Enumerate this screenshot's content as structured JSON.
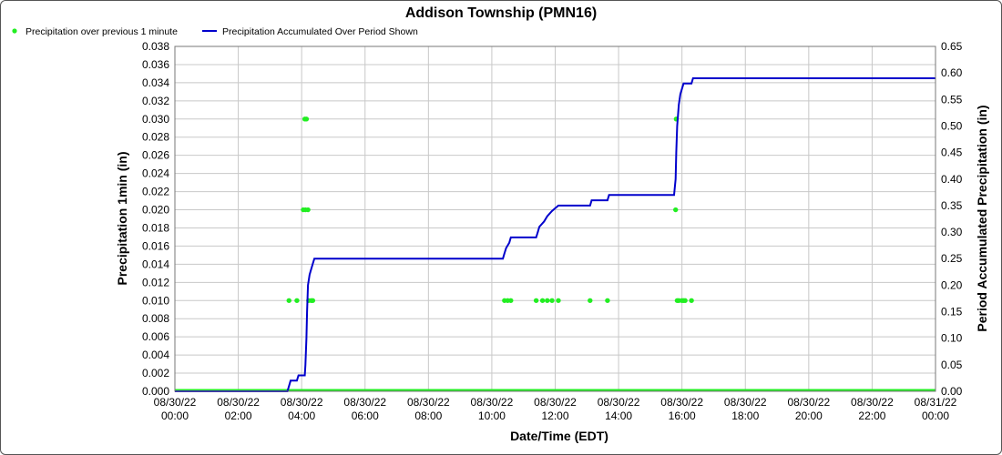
{
  "chart_data": {
    "type": "line",
    "title": "Addison Township (PMN16)",
    "xlabel": "Date/Time (EDT)",
    "ylabel_left": "Precipitation 1min (in)",
    "ylabel_right": "Period Accumulated Precipitation (in)",
    "x_range_hours": [
      0,
      24
    ],
    "ylim_left": [
      0,
      0.038
    ],
    "ylim_right": [
      0,
      0.65
    ],
    "grid": true,
    "legend_position": "top-left",
    "colors": {
      "points": "#22ee22",
      "line": "#0000cc",
      "grid": "#c8c8c8"
    },
    "x_ticks": [
      {
        "date": "08/30/22",
        "time": "00:00"
      },
      {
        "date": "08/30/22",
        "time": "02:00"
      },
      {
        "date": "08/30/22",
        "time": "04:00"
      },
      {
        "date": "08/30/22",
        "time": "06:00"
      },
      {
        "date": "08/30/22",
        "time": "08:00"
      },
      {
        "date": "08/30/22",
        "time": "10:00"
      },
      {
        "date": "08/30/22",
        "time": "12:00"
      },
      {
        "date": "08/30/22",
        "time": "14:00"
      },
      {
        "date": "08/30/22",
        "time": "16:00"
      },
      {
        "date": "08/30/22",
        "time": "18:00"
      },
      {
        "date": "08/30/22",
        "time": "20:00"
      },
      {
        "date": "08/30/22",
        "time": "22:00"
      },
      {
        "date": "08/31/22",
        "time": "00:00"
      }
    ],
    "y_left_ticks": [
      "0.000",
      "0.002",
      "0.004",
      "0.006",
      "0.008",
      "0.010",
      "0.012",
      "0.014",
      "0.016",
      "0.018",
      "0.020",
      "0.022",
      "0.024",
      "0.026",
      "0.028",
      "0.030",
      "0.032",
      "0.034",
      "0.036",
      "0.038"
    ],
    "y_right_ticks": [
      "0.00",
      "0.05",
      "0.10",
      "0.15",
      "0.20",
      "0.25",
      "0.30",
      "0.35",
      "0.40",
      "0.45",
      "0.50",
      "0.55",
      "0.60",
      "0.65"
    ],
    "series": [
      {
        "name": "Precipitation over previous 1 minute",
        "kind": "scatter",
        "points": [
          [
            3.6,
            0.01
          ],
          [
            3.85,
            0.01
          ],
          [
            4.05,
            0.02
          ],
          [
            4.1,
            0.03
          ],
          [
            4.12,
            0.02
          ],
          [
            4.15,
            0.03
          ],
          [
            4.2,
            0.02
          ],
          [
            4.22,
            0.01
          ],
          [
            4.3,
            0.01
          ],
          [
            4.35,
            0.01
          ],
          [
            10.4,
            0.01
          ],
          [
            10.5,
            0.01
          ],
          [
            10.6,
            0.01
          ],
          [
            11.4,
            0.01
          ],
          [
            11.6,
            0.01
          ],
          [
            11.75,
            0.01
          ],
          [
            11.9,
            0.01
          ],
          [
            12.1,
            0.01
          ],
          [
            13.1,
            0.01
          ],
          [
            13.65,
            0.01
          ],
          [
            15.8,
            0.02
          ],
          [
            15.82,
            0.03
          ],
          [
            15.85,
            0.01
          ],
          [
            15.9,
            0.01
          ],
          [
            16.0,
            0.01
          ],
          [
            16.05,
            0.01
          ],
          [
            16.1,
            0.01
          ],
          [
            16.3,
            0.01
          ]
        ]
      },
      {
        "name": "Precipitation Accumulated Over Period Shown",
        "kind": "line",
        "points": [
          [
            0,
            0
          ],
          [
            3.55,
            0
          ],
          [
            3.6,
            0.01
          ],
          [
            3.65,
            0.02
          ],
          [
            3.85,
            0.02
          ],
          [
            3.9,
            0.03
          ],
          [
            4.1,
            0.03
          ],
          [
            4.12,
            0.05
          ],
          [
            4.15,
            0.1
          ],
          [
            4.17,
            0.15
          ],
          [
            4.2,
            0.2
          ],
          [
            4.25,
            0.22
          ],
          [
            4.3,
            0.23
          ],
          [
            4.35,
            0.24
          ],
          [
            4.4,
            0.25
          ],
          [
            10.35,
            0.25
          ],
          [
            10.4,
            0.26
          ],
          [
            10.45,
            0.27
          ],
          [
            10.55,
            0.28
          ],
          [
            10.6,
            0.29
          ],
          [
            11.4,
            0.29
          ],
          [
            11.45,
            0.3
          ],
          [
            11.5,
            0.31
          ],
          [
            11.65,
            0.32
          ],
          [
            11.75,
            0.33
          ],
          [
            11.9,
            0.34
          ],
          [
            12.1,
            0.35
          ],
          [
            13.1,
            0.35
          ],
          [
            13.15,
            0.36
          ],
          [
            13.65,
            0.36
          ],
          [
            13.7,
            0.37
          ],
          [
            15.75,
            0.37
          ],
          [
            15.8,
            0.4
          ],
          [
            15.82,
            0.45
          ],
          [
            15.85,
            0.5
          ],
          [
            15.9,
            0.54
          ],
          [
            15.95,
            0.56
          ],
          [
            16.05,
            0.58
          ],
          [
            16.3,
            0.58
          ],
          [
            16.35,
            0.59
          ],
          [
            24,
            0.59
          ]
        ]
      }
    ]
  }
}
